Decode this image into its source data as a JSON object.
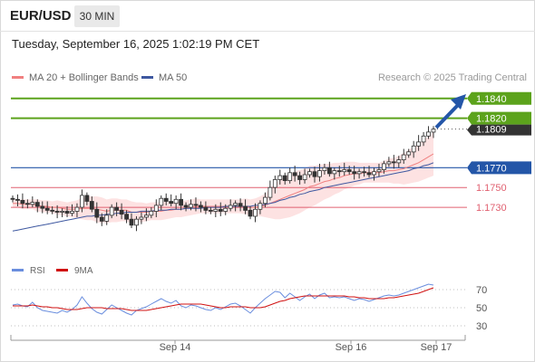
{
  "header": {
    "symbol": "EUR/USD",
    "timeframe": "30 MIN",
    "datetime": "Tuesday, September 16, 2025 1:02:19 PM CET",
    "credit": "Research © 2025 Trading Central"
  },
  "legend": {
    "ma20": "MA 20 + Bollinger Bands",
    "ma50": "MA 50",
    "rsi": "RSI",
    "rsi_ma": "9MA"
  },
  "colors": {
    "up_candle": "#ffffff",
    "down_candle": "#333333",
    "resistance": "#5ca31c",
    "pivot": "#2456a8",
    "support": "#e06070",
    "ma20": "#f08080",
    "bollinger_fill": "#fde2e2",
    "ma50": "#3e58a0",
    "rsi": "#6a8ede",
    "rsi_ma": "#d01010",
    "current_price": "#333333",
    "arrow": "#2456a8"
  },
  "chart_data": [
    {
      "type": "candlestick",
      "title": "EUR/USD",
      "timeframe": "30 MIN",
      "ylim": [
        1.1688,
        1.1848
      ],
      "x_ticks": [
        "Sep 14",
        "Sep 16",
        "Sep 17"
      ],
      "last_price": 1.1809,
      "levels": [
        {
          "label": "1.1840",
          "value": 1.184,
          "kind": "resistance"
        },
        {
          "label": "1.1820",
          "value": 1.182,
          "kind": "resistance"
        },
        {
          "label": "1.1809",
          "value": 1.1809,
          "kind": "current"
        },
        {
          "label": "1.1770",
          "value": 1.177,
          "kind": "pivot"
        },
        {
          "label": "1.1750",
          "value": 1.175,
          "kind": "support"
        },
        {
          "label": "1.1730",
          "value": 1.173,
          "kind": "support"
        }
      ],
      "close_series": [
        1.1738,
        1.1737,
        1.1734,
        1.1733,
        1.1735,
        1.1731,
        1.1729,
        1.1727,
        1.1726,
        1.1725,
        1.1726,
        1.1724,
        1.1726,
        1.173,
        1.1742,
        1.1736,
        1.1728,
        1.172,
        1.1716,
        1.1722,
        1.173,
        1.1727,
        1.1723,
        1.1718,
        1.1712,
        1.1718,
        1.172,
        1.1722,
        1.1726,
        1.1732,
        1.1739,
        1.1736,
        1.1734,
        1.1738,
        1.1732,
        1.173,
        1.1733,
        1.1732,
        1.173,
        1.1727,
        1.1726,
        1.1728,
        1.1726,
        1.1729,
        1.1732,
        1.1734,
        1.1731,
        1.1727,
        1.1721,
        1.1728,
        1.1734,
        1.174,
        1.175,
        1.1758,
        1.1762,
        1.1757,
        1.1765,
        1.1762,
        1.1758,
        1.1763,
        1.1766,
        1.1761,
        1.1767,
        1.177,
        1.1764,
        1.1767,
        1.1766,
        1.1768,
        1.1766,
        1.1764,
        1.1766,
        1.1765,
        1.1763,
        1.1766,
        1.1768,
        1.1774,
        1.1776,
        1.1775,
        1.1778,
        1.1783,
        1.1786,
        1.1792,
        1.1796,
        1.1802,
        1.1806,
        1.1809
      ],
      "ma20_series": [
        1.1734,
        1.1734,
        1.1733,
        1.1733,
        1.1733,
        1.1732,
        1.1731,
        1.1731,
        1.173,
        1.173,
        1.1729,
        1.1728,
        1.1728,
        1.1728,
        1.1729,
        1.1729,
        1.1729,
        1.1728,
        1.1727,
        1.1726,
        1.1727,
        1.1727,
        1.1727,
        1.1727,
        1.1725,
        1.1725,
        1.1725,
        1.1725,
        1.1726,
        1.1726,
        1.1726,
        1.1727,
        1.1727,
        1.1728,
        1.1728,
        1.1729,
        1.173,
        1.1731,
        1.1731,
        1.1731,
        1.1731,
        1.1731,
        1.1731,
        1.1731,
        1.1731,
        1.1731,
        1.1731,
        1.1731,
        1.173,
        1.173,
        1.1731,
        1.1732,
        1.1734,
        1.1736,
        1.1738,
        1.174,
        1.1742,
        1.1744,
        1.1746,
        1.1748,
        1.1751,
        1.1752,
        1.1754,
        1.1756,
        1.1757,
        1.1759,
        1.176,
        1.1762,
        1.1763,
        1.1764,
        1.1764,
        1.1765,
        1.1765,
        1.1765,
        1.1765,
        1.1766,
        1.1767,
        1.1767,
        1.1768,
        1.1769,
        1.1771,
        1.1773,
        1.1775,
        1.1778,
        1.1781,
        1.1784
      ],
      "ma50_series": [
        1.1706,
        1.1707,
        1.1708,
        1.1709,
        1.171,
        1.1711,
        1.1712,
        1.1713,
        1.1714,
        1.1715,
        1.1716,
        1.1717,
        1.1718,
        1.1719,
        1.172,
        1.1721,
        1.1721,
        1.1722,
        1.1722,
        1.1723,
        1.1723,
        1.1724,
        1.1724,
        1.1725,
        1.1725,
        1.1725,
        1.1726,
        1.1726,
        1.1726,
        1.1727,
        1.1727,
        1.1727,
        1.1728,
        1.1728,
        1.1728,
        1.1729,
        1.1729,
        1.1729,
        1.1729,
        1.173,
        1.173,
        1.173,
        1.173,
        1.1731,
        1.1731,
        1.1731,
        1.1731,
        1.1731,
        1.1731,
        1.1732,
        1.1732,
        1.1733,
        1.1734,
        1.1735,
        1.1737,
        1.1738,
        1.174,
        1.1741,
        1.1743,
        1.1744,
        1.1746,
        1.1747,
        1.1748,
        1.175,
        1.1751,
        1.1752,
        1.1753,
        1.1754,
        1.1755,
        1.1756,
        1.1757,
        1.1758,
        1.1759,
        1.176,
        1.1761,
        1.1762,
        1.1763,
        1.1764,
        1.1765,
        1.1766,
        1.1767,
        1.1769,
        1.177,
        1.1772,
        1.1773,
        1.1775
      ],
      "bollinger_width": [
        0.0004,
        0.0004,
        0.0005,
        0.0005,
        0.0005,
        0.0006,
        0.0006,
        0.0006,
        0.0006,
        0.0007,
        0.0007,
        0.0007,
        0.0008,
        0.0009,
        0.0011,
        0.0012,
        0.0012,
        0.0013,
        0.0013,
        0.0012,
        0.0012,
        0.0012,
        0.0011,
        0.0011,
        0.0011,
        0.001,
        0.001,
        0.0009,
        0.0009,
        0.0009,
        0.0009,
        0.0009,
        0.0008,
        0.0008,
        0.0008,
        0.0008,
        0.0008,
        0.0008,
        0.0007,
        0.0007,
        0.0007,
        0.0007,
        0.0007,
        0.0007,
        0.0007,
        0.0007,
        0.0007,
        0.0008,
        0.0008,
        0.0009,
        0.001,
        0.0012,
        0.0015,
        0.0018,
        0.002,
        0.0021,
        0.0022,
        0.0022,
        0.0022,
        0.0021,
        0.0021,
        0.002,
        0.0019,
        0.0018,
        0.0017,
        0.0016,
        0.0015,
        0.0014,
        0.0013,
        0.0012,
        0.0011,
        0.001,
        0.001,
        0.001,
        0.001,
        0.0011,
        0.0012,
        0.0013,
        0.0014,
        0.0016,
        0.0017,
        0.0018,
        0.0019,
        0.002,
        0.0021,
        0.0022
      ]
    },
    {
      "type": "line",
      "title": "RSI",
      "ylim": [
        20,
        80
      ],
      "y_ticks": [
        70,
        50,
        30
      ],
      "series": [
        {
          "name": "RSI",
          "values": [
            53,
            54,
            52,
            51,
            56,
            50,
            47,
            46,
            45,
            44,
            47,
            45,
            48,
            53,
            62,
            55,
            49,
            45,
            43,
            48,
            53,
            50,
            47,
            44,
            42,
            47,
            49,
            51,
            54,
            57,
            60,
            57,
            55,
            58,
            52,
            50,
            53,
            52,
            50,
            48,
            47,
            50,
            48,
            51,
            54,
            55,
            52,
            48,
            44,
            50,
            55,
            60,
            64,
            68,
            67,
            61,
            66,
            62,
            58,
            62,
            65,
            60,
            64,
            66,
            61,
            62,
            61,
            62,
            60,
            58,
            60,
            59,
            57,
            59,
            61,
            63,
            64,
            63,
            64,
            66,
            68,
            70,
            72,
            74,
            76,
            75
          ]
        },
        {
          "name": "9MA",
          "values": [
            52,
            52,
            52,
            52,
            53,
            52,
            51,
            51,
            50,
            50,
            49,
            48,
            48,
            48,
            49,
            50,
            50,
            50,
            50,
            49,
            49,
            49,
            49,
            48,
            47,
            47,
            47,
            47,
            48,
            49,
            50,
            51,
            52,
            53,
            54,
            54,
            54,
            54,
            54,
            53,
            52,
            51,
            50,
            50,
            51,
            51,
            51,
            51,
            50,
            50,
            50,
            51,
            53,
            55,
            57,
            58,
            60,
            61,
            62,
            63,
            63,
            63,
            63,
            63,
            63,
            63,
            63,
            63,
            62,
            62,
            61,
            61,
            60,
            60,
            60,
            60,
            61,
            61,
            62,
            63,
            64,
            65,
            66,
            68,
            70,
            72
          ]
        }
      ]
    }
  ]
}
